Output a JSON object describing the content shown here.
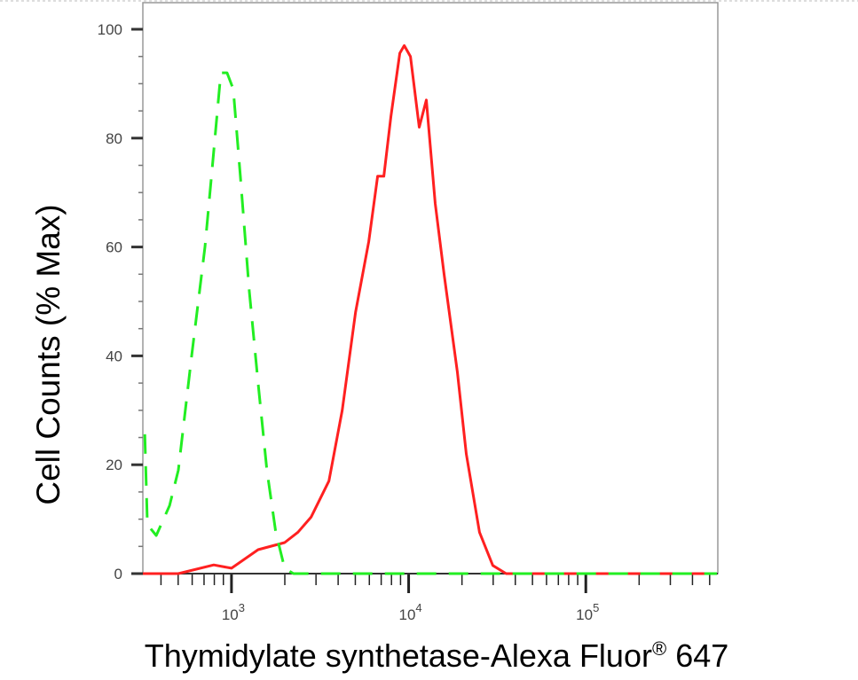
{
  "chart_data": {
    "type": "line",
    "title": "",
    "xlabel": "Thymidylate synthetase-Alexa Fluor",
    "xlabel_mark": "®",
    "xlabel_suffix": " 647",
    "ylabel": "Cell Counts (% Max)",
    "x_scale": "log",
    "xlim": [
      316,
      556000
    ],
    "ylim": [
      0,
      100
    ],
    "x_ticks": [
      {
        "value": 1000,
        "base": "10",
        "exp": "3"
      },
      {
        "value": 10000,
        "base": "10",
        "exp": "4"
      },
      {
        "value": 100000,
        "base": "10",
        "exp": "5"
      }
    ],
    "y_ticks": [
      "0",
      "20",
      "40",
      "60",
      "80",
      "100"
    ],
    "grid": false,
    "legend": "none",
    "series": [
      {
        "color": "#ff2020",
        "style": "solid",
        "x": [
          316,
          501,
          794,
          1000,
          1413,
          1995,
          2371,
          2818,
          3548,
          4217,
          5012,
          5957,
          6683,
          7244,
          7943,
          8913,
          9441,
          10233,
          11482,
          12589,
          14125,
          15849,
          18836,
          21135,
          25119,
          29854,
          35481,
          549541
        ],
        "y": [
          0,
          0,
          1.6,
          1,
          4.4,
          5.7,
          7.6,
          10.4,
          17,
          30,
          48,
          61,
          73,
          73,
          84,
          95.6,
          97,
          95,
          82,
          87,
          68,
          55,
          37,
          22,
          7.6,
          1.5,
          0,
          0
        ]
      },
      {
        "color": "#22ee22",
        "style": "dashed",
        "x": [
          324,
          335,
          376,
          447,
          501,
          596,
          708,
          776,
          871,
          944,
          1023,
          1122,
          1259,
          1413,
          1585,
          1778,
          1995,
          2239,
          549541
        ],
        "y": [
          25.6,
          9,
          7,
          12.5,
          19,
          40,
          60,
          74,
          92,
          92,
          89,
          73,
          52,
          35,
          19,
          7.6,
          1,
          0,
          0
        ]
      }
    ]
  }
}
